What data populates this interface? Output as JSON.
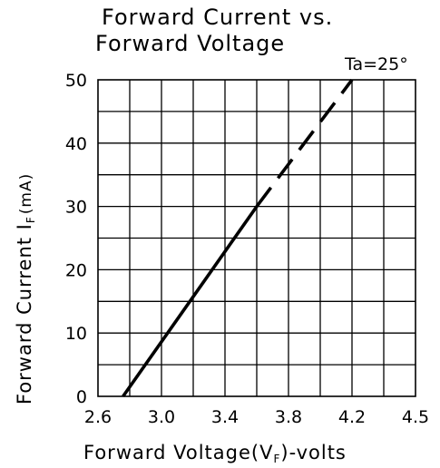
{
  "chart_data": {
    "type": "line",
    "title_line1": "Forward Current vs.",
    "title_line2": "Forward Voltage",
    "condition": "Ta=25°",
    "ylabel": "Forward Current I",
    "ylabel_sub": "F",
    "ylabel_unit": "(mA)",
    "xlabel": "Forward Voltage(V",
    "xlabel_sub": "F",
    "xlabel_unit": ")-volts",
    "xlim": [
      2.6,
      4.5
    ],
    "ylim": [
      0,
      50
    ],
    "x_ticks": [
      "2.6",
      "3.0",
      "3.4",
      "3.8",
      "4.2",
      "4.5"
    ],
    "y_ticks": [
      "0",
      "10",
      "20",
      "30",
      "40",
      "50"
    ],
    "grid": true,
    "series": [
      {
        "style": "solid",
        "x": [
          2.75,
          3.55
        ],
        "y": [
          0,
          30
        ]
      },
      {
        "style": "dashed",
        "x": [
          3.55,
          4.12
        ],
        "y": [
          30,
          50
        ]
      }
    ]
  }
}
